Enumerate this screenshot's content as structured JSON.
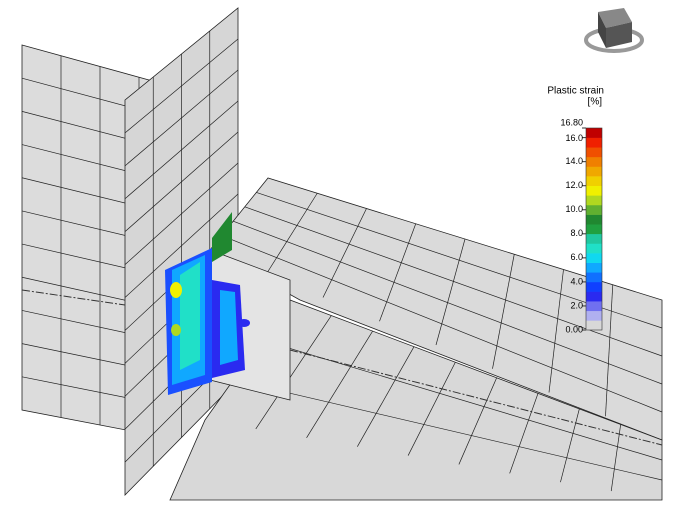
{
  "legend": {
    "title": "Plastic strain",
    "unit": "[%]",
    "range": [
      0,
      16.8
    ],
    "ticks": [
      {
        "value": 16.8,
        "label": "16.80"
      },
      {
        "value": 16,
        "label": "16.0"
      },
      {
        "value": 14,
        "label": "14.0"
      },
      {
        "value": 12,
        "label": "12.0"
      },
      {
        "value": 10,
        "label": "10.0"
      },
      {
        "value": 8,
        "label": "8.0"
      },
      {
        "value": 6,
        "label": "6.0"
      },
      {
        "value": 4,
        "label": "4.0"
      },
      {
        "value": 2,
        "label": "2.0"
      },
      {
        "value": 0,
        "label": "0.00"
      }
    ],
    "colors": [
      "#d8d8d8",
      "#b0b0f0",
      "#7070f0",
      "#2a2af0",
      "#1040ff",
      "#1070ff",
      "#10a8ff",
      "#10d8f0",
      "#20e0c8",
      "#20c8a0",
      "#20a040",
      "#208830",
      "#60b030",
      "#b0d820",
      "#f0f000",
      "#f0d000",
      "#f0a800",
      "#f08000",
      "#f05000",
      "#f02000",
      "#c00000"
    ]
  }
}
